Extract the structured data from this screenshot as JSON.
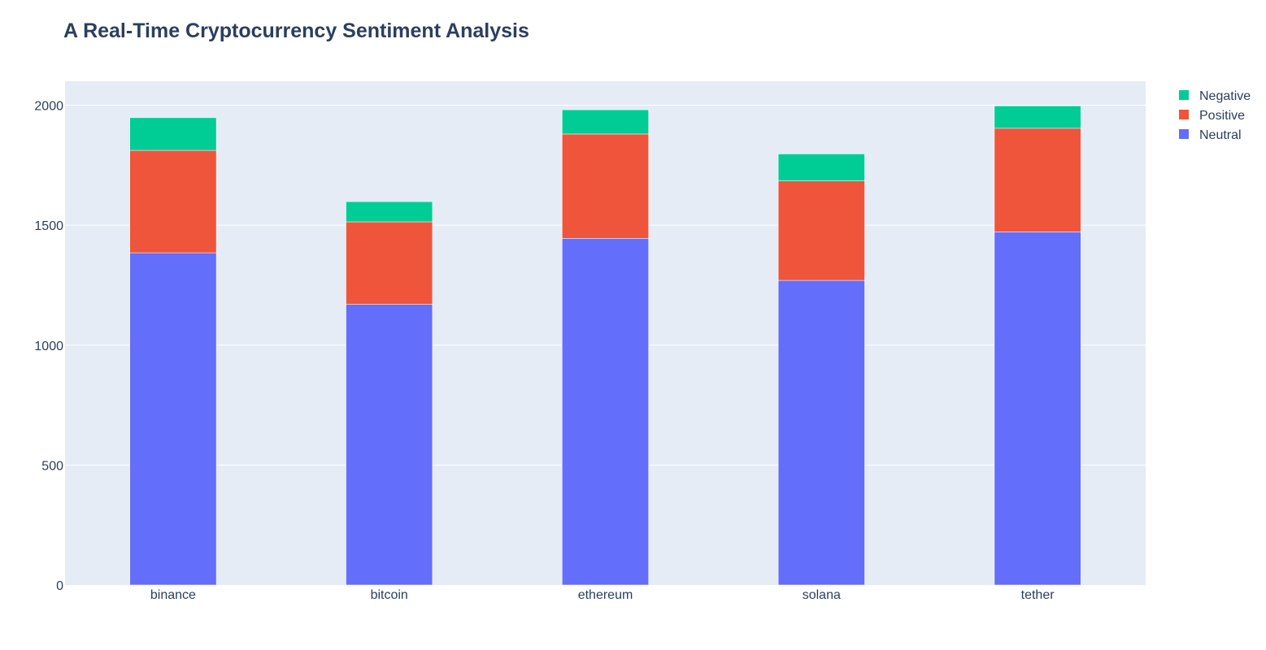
{
  "chart_data": {
    "type": "bar",
    "stacked": true,
    "title": "A Real-Time Cryptocurrency Sentiment Analysis",
    "xlabel": "",
    "ylabel": "",
    "categories": [
      "binance",
      "bitcoin",
      "ethereum",
      "solana",
      "tether"
    ],
    "series": [
      {
        "name": "Neutral",
        "color": "#636efa",
        "values": [
          1385,
          1170,
          1445,
          1270,
          1472
        ]
      },
      {
        "name": "Positive",
        "color": "#ef553b",
        "values": [
          427,
          344,
          435,
          415,
          432
        ]
      },
      {
        "name": "Negative",
        "color": "#00cc96",
        "values": [
          136,
          84,
          101,
          112,
          93
        ]
      }
    ],
    "ylim": [
      0,
      2100
    ],
    "yticks": [
      0,
      500,
      1000,
      1500,
      2000
    ],
    "grid": true,
    "legend_position": "top-right",
    "legend_order": [
      "Negative",
      "Positive",
      "Neutral"
    ],
    "plot_background": "#e5ecf6",
    "text_color": "#2a3f5f"
  }
}
